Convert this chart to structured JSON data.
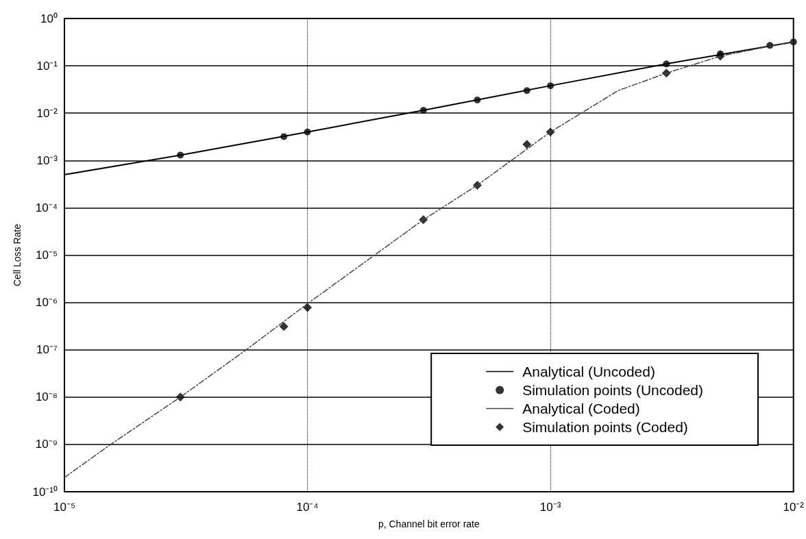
{
  "chart_data": {
    "type": "line",
    "xlabel": "p, Channel bit error rate",
    "ylabel": "Cell Loss Rate",
    "log": "xy",
    "grid": true,
    "legend": "bottom right",
    "xlim": [
      1e-05,
      0.01
    ],
    "ylim": [
      1e-10,
      1
    ],
    "xticks": [
      {
        "value": 1e-05,
        "label": "10⁻⁵"
      },
      {
        "value": 0.0001,
        "label": "10⁻⁴"
      },
      {
        "value": 0.001,
        "label": "10⁻³"
      },
      {
        "value": 0.01,
        "label": "10⁻²"
      }
    ],
    "yticks": [
      {
        "value": 1e-10,
        "label": "10⁻¹⁰"
      },
      {
        "value": 1e-09,
        "label": "10⁻⁹"
      },
      {
        "value": 1e-08,
        "label": "10⁻⁸"
      },
      {
        "value": 1e-07,
        "label": "10⁻⁷"
      },
      {
        "value": 1e-06,
        "label": "10⁻⁶"
      },
      {
        "value": 1e-05,
        "label": "10⁻⁵"
      },
      {
        "value": 0.0001,
        "label": "10⁻⁴"
      },
      {
        "value": 0.001,
        "label": "10⁻³"
      },
      {
        "value": 0.01,
        "label": "10⁻²"
      },
      {
        "value": 0.1,
        "label": "10⁻¹"
      },
      {
        "value": 1,
        "label": "10⁰"
      }
    ],
    "series": [
      {
        "name": "Analytical (Uncoded)",
        "type": "line",
        "color": "#000000",
        "line_style": "solid",
        "marker": "none",
        "x": [
          1e-05,
          3e-05,
          0.0001,
          0.0003,
          0.001,
          0.003,
          0.01
        ],
        "values": [
          0.0005,
          0.0013,
          0.004,
          0.0115,
          0.038,
          0.11,
          0.32
        ]
      },
      {
        "name": "Simulation points (Uncoded)",
        "type": "scatter",
        "color": "#000000",
        "marker": "circle",
        "x": [
          3e-05,
          8e-05,
          0.0001,
          0.0003,
          0.0005,
          0.0008,
          0.001,
          0.003,
          0.005,
          0.008,
          0.01
        ],
        "values": [
          0.0013,
          0.0032,
          0.004,
          0.0115,
          0.019,
          0.03,
          0.038,
          0.11,
          0.18,
          0.27,
          0.32
        ]
      },
      {
        "name": "Analytical (Coded)",
        "type": "line",
        "color": "#444444",
        "line_style": "dashed",
        "marker": "none",
        "x": [
          1e-05,
          1.55e-05,
          3e-05,
          5.6e-05,
          0.0001,
          0.0003,
          0.0005,
          0.001,
          0.0019,
          0.003,
          0.005,
          0.008,
          0.01
        ],
        "values": [
          2e-10,
          1e-09,
          1e-08,
          1e-07,
          9.4e-07,
          5.6e-05,
          0.0003,
          0.004,
          0.03,
          0.07,
          0.16,
          0.26,
          0.32
        ]
      },
      {
        "name": "Simulation points (Coded)",
        "type": "scatter",
        "color": "#000000",
        "marker": "diamond",
        "x": [
          3e-05,
          8e-05,
          0.0001,
          0.0003,
          0.0005,
          0.0008,
          0.001,
          0.003,
          0.005
        ],
        "values": [
          1e-08,
          3.1e-07,
          7.8e-07,
          5.6e-05,
          0.0003,
          0.0022,
          0.004,
          0.07,
          0.16
        ]
      }
    ]
  }
}
